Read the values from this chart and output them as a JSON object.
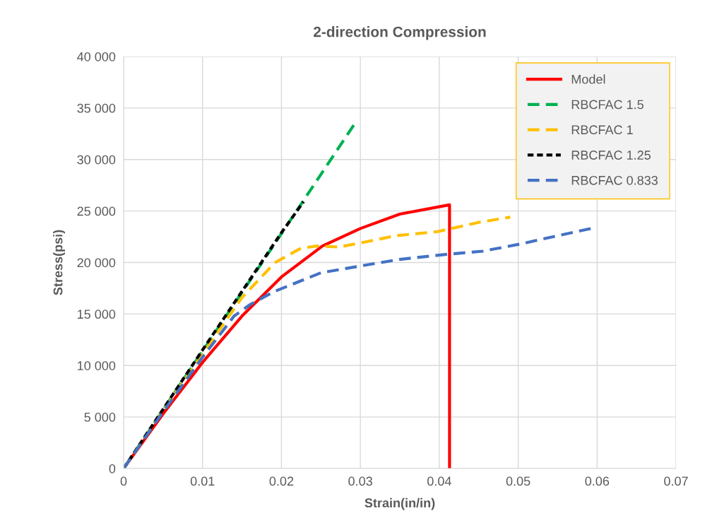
{
  "chart_data": {
    "type": "line",
    "title": "2-direction Compression",
    "xlabel": "Strain(in/in)",
    "ylabel": "Stress(psi)",
    "xlim": [
      0,
      0.07
    ],
    "xticks": [
      0,
      0.01,
      0.02,
      0.03,
      0.04,
      0.05,
      0.06,
      0.07
    ],
    "ylim": [
      0,
      40000
    ],
    "yticks": [
      {
        "value": 0,
        "label": "0"
      },
      {
        "value": 5000,
        "label": "5 000"
      },
      {
        "value": 10000,
        "label": "10 000"
      },
      {
        "value": 15000,
        "label": "15 000"
      },
      {
        "value": 20000,
        "label": "20 000"
      },
      {
        "value": 25000,
        "label": "25 000"
      },
      {
        "value": 30000,
        "label": "30 000"
      },
      {
        "value": 35000,
        "label": "35 000"
      },
      {
        "value": 40000,
        "label": "40 000"
      }
    ],
    "grid": true,
    "legend": "top right",
    "marker": "none",
    "series": [
      {
        "name": "Model",
        "color": "#ff0000",
        "line_style": "solid",
        "x": [
          0,
          0.005,
          0.01,
          0.015,
          0.02,
          0.0252,
          0.03,
          0.035,
          0.0413,
          0.0413
        ],
        "values": [
          0,
          5300,
          10300,
          14800,
          18600,
          21600,
          23300,
          24700,
          25600,
          0
        ]
      },
      {
        "name": "RBCFAC 1.5",
        "color": "#00b050",
        "line_style": "dashed",
        "x": [
          0,
          0.01,
          0.02,
          0.0293
        ],
        "values": [
          0,
          11400,
          22800,
          33500
        ]
      },
      {
        "name": "RBCFAC 1",
        "color": "#ffc000",
        "line_style": "dashed",
        "x": [
          0,
          0.005,
          0.01,
          0.012,
          0.015,
          0.0192,
          0.0225,
          0.0246,
          0.0273,
          0.03,
          0.0345,
          0.0398,
          0.045,
          0.049
        ],
        "values": [
          0,
          5600,
          11100,
          13300,
          16600,
          20000,
          21400,
          21600,
          21500,
          21900,
          22600,
          23000,
          23900,
          24400
        ]
      },
      {
        "name": "RBCFAC 1.25",
        "color": "#000000",
        "line_style": "dotted",
        "x": [
          0,
          0.01,
          0.02,
          0.0228
        ],
        "values": [
          0,
          11500,
          22900,
          25900
        ]
      },
      {
        "name": "RBCFAC 0.833",
        "color": "#4472c4",
        "line_style": "dashed",
        "x": [
          0,
          0.005,
          0.01,
          0.014,
          0.016,
          0.019,
          0.025,
          0.0303,
          0.035,
          0.041,
          0.0455,
          0.0503,
          0.055,
          0.0595
        ],
        "values": [
          0,
          5500,
          10800,
          14800,
          15900,
          17150,
          19000,
          19700,
          20300,
          20800,
          21100,
          21800,
          22600,
          23350
        ]
      }
    ]
  }
}
